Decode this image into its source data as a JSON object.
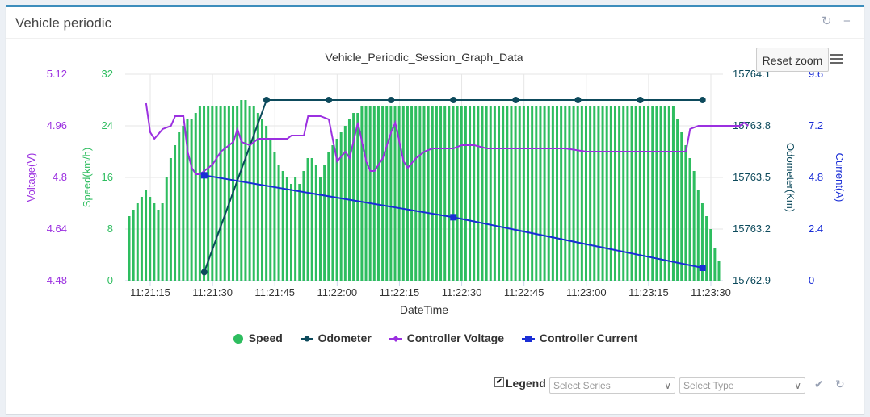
{
  "panel": {
    "title": "Vehicle periodic",
    "refresh_icon": "refresh-icon",
    "minimize_icon": "minimize-icon"
  },
  "toolbar": {
    "reset_zoom_label": "Reset zoom",
    "menu_icon": "hamburger-menu-icon"
  },
  "footer": {
    "legend_checkbox_label": "Legend",
    "legend_checked": true,
    "select_series_placeholder": "Select Series",
    "select_type_placeholder": "Select Type",
    "apply_icon": "check-icon",
    "refresh_icon": "refresh-icon"
  },
  "chart_data": {
    "type": "combo",
    "title": "Vehicle_Periodic_Session_Graph_Data",
    "xlabel": "DateTime",
    "x_ticks": [
      "11:21:15",
      "11:21:30",
      "11:21:45",
      "11:22:00",
      "11:22:15",
      "11:22:30",
      "11:22:45",
      "11:23:00",
      "11:23:15",
      "11:23:30"
    ],
    "colors": {
      "speed": "#2ebd5f",
      "odometer": "#0d4a5c",
      "voltage": "#9b30e0",
      "current": "#1a2ed6"
    },
    "axes": {
      "voltage": {
        "label": "Voltage(V)",
        "min": 4.48,
        "max": 5.12,
        "ticks": [
          "4.48",
          "4.64",
          "4.8",
          "4.96",
          "5.12"
        ],
        "side": "left"
      },
      "speed": {
        "label": "Speed(km/h)",
        "min": 0,
        "max": 32,
        "ticks": [
          "0",
          "8",
          "16",
          "24",
          "32"
        ],
        "side": "left"
      },
      "odometer": {
        "label": "Odometer(Km)",
        "min": 15762.9,
        "max": 15764.1,
        "ticks": [
          "15762.9",
          "15763.2",
          "15763.5",
          "15763.8",
          "15764.1"
        ],
        "side": "right"
      },
      "current": {
        "label": "Current(A)",
        "min": 0,
        "max": 9.6,
        "ticks": [
          "0",
          "2.4",
          "4.8",
          "7.2",
          "9.6"
        ],
        "side": "right"
      }
    },
    "time_start": "11:21:15",
    "time_end": "11:23:30",
    "series": [
      {
        "name": "Speed",
        "type": "bar",
        "axis": "speed",
        "values": [
          10,
          11,
          12,
          13,
          14,
          13,
          12,
          11,
          12,
          16,
          19,
          21,
          23,
          24,
          25,
          25,
          26,
          27,
          27,
          27,
          27,
          27,
          27,
          27,
          27,
          27,
          27,
          28,
          28,
          27,
          27,
          26,
          25,
          24,
          22,
          20,
          18,
          17,
          16,
          15,
          16,
          15,
          17,
          19,
          19,
          18,
          16,
          18,
          20,
          21,
          22,
          23,
          24,
          25,
          26,
          26,
          27,
          27,
          27,
          27,
          27,
          27,
          27,
          27,
          27,
          27,
          27,
          27,
          27,
          27,
          27,
          27,
          27,
          27,
          27,
          27,
          27,
          27,
          27,
          27,
          27,
          27,
          27,
          27,
          27,
          27,
          27,
          27,
          27,
          27,
          27,
          27,
          27,
          27,
          27,
          27,
          27,
          27,
          27,
          27,
          27,
          27,
          27,
          27,
          27,
          27,
          27,
          27,
          27,
          27,
          27,
          27,
          27,
          27,
          27,
          27,
          27,
          27,
          27,
          27,
          27,
          27,
          27,
          27,
          27,
          27,
          27,
          27,
          27,
          27,
          27,
          27,
          25,
          23,
          21,
          19,
          17,
          14,
          12,
          10,
          8,
          5,
          3
        ]
      },
      {
        "name": "Odometer",
        "type": "line",
        "axis": "odometer",
        "points": [
          [
            "11:21:28",
            15762.95
          ],
          [
            "11:21:43",
            15763.95
          ],
          [
            "11:21:58",
            15763.95
          ],
          [
            "11:22:13",
            15763.95
          ],
          [
            "11:22:28",
            15763.95
          ],
          [
            "11:22:43",
            15763.95
          ],
          [
            "11:22:58",
            15763.95
          ],
          [
            "11:23:13",
            15763.95
          ],
          [
            "11:23:28",
            15763.95
          ]
        ]
      },
      {
        "name": "Controller Voltage",
        "type": "line",
        "axis": "voltage",
        "points": [
          [
            "11:21:14",
            5.03
          ],
          [
            "11:21:15",
            4.94
          ],
          [
            "11:21:16",
            4.92
          ],
          [
            "11:21:18",
            4.95
          ],
          [
            "11:21:20",
            4.96
          ],
          [
            "11:21:21",
            4.99
          ],
          [
            "11:21:23",
            4.99
          ],
          [
            "11:21:24",
            4.88
          ],
          [
            "11:21:25",
            4.83
          ],
          [
            "11:21:26",
            4.81
          ],
          [
            "11:21:27",
            4.81
          ],
          [
            "11:21:28",
            4.82
          ],
          [
            "11:21:30",
            4.84
          ],
          [
            "11:21:32",
            4.88
          ],
          [
            "11:21:33",
            4.89
          ],
          [
            "11:21:34",
            4.9
          ],
          [
            "11:21:35",
            4.91
          ],
          [
            "11:21:36",
            4.95
          ],
          [
            "11:21:37",
            4.91
          ],
          [
            "11:21:39",
            4.9
          ],
          [
            "11:21:41",
            4.92
          ],
          [
            "11:21:44",
            4.92
          ],
          [
            "11:21:48",
            4.92
          ],
          [
            "11:21:49",
            4.93
          ],
          [
            "11:21:52",
            4.93
          ],
          [
            "11:21:53",
            4.99
          ],
          [
            "11:21:55",
            4.99
          ],
          [
            "11:21:56",
            4.99
          ],
          [
            "11:21:58",
            4.98
          ],
          [
            "11:22:00",
            4.85
          ],
          [
            "11:22:02",
            4.88
          ],
          [
            "11:22:03",
            4.86
          ],
          [
            "11:22:05",
            4.97
          ],
          [
            "11:22:07",
            4.85
          ],
          [
            "11:22:08",
            4.82
          ],
          [
            "11:22:09",
            4.82
          ],
          [
            "11:22:11",
            4.86
          ],
          [
            "11:22:13",
            4.94
          ],
          [
            "11:22:14",
            4.97
          ],
          [
            "11:22:15",
            4.91
          ],
          [
            "11:22:16",
            4.85
          ],
          [
            "11:22:17",
            4.83
          ],
          [
            "11:22:19",
            4.86
          ],
          [
            "11:22:21",
            4.88
          ],
          [
            "11:22:23",
            4.89
          ],
          [
            "11:22:25",
            4.89
          ],
          [
            "11:22:28",
            4.89
          ],
          [
            "11:22:30",
            4.9
          ],
          [
            "11:22:33",
            4.9
          ],
          [
            "11:22:36",
            4.89
          ],
          [
            "11:22:40",
            4.89
          ],
          [
            "11:22:45",
            4.89
          ],
          [
            "11:22:50",
            4.89
          ],
          [
            "11:22:55",
            4.89
          ],
          [
            "11:23:00",
            4.88
          ],
          [
            "11:23:05",
            4.88
          ],
          [
            "11:23:10",
            4.88
          ],
          [
            "11:23:15",
            4.88
          ],
          [
            "11:23:20",
            4.88
          ],
          [
            "11:23:23",
            4.88
          ],
          [
            "11:23:24",
            4.88
          ],
          [
            "11:23:25",
            4.95
          ],
          [
            "11:23:27",
            4.96
          ],
          [
            "11:23:29",
            4.96
          ],
          [
            "11:23:30",
            4.96
          ],
          [
            "11:23:32",
            4.96
          ],
          [
            "11:23:33",
            4.96
          ],
          [
            "11:23:35",
            4.96
          ],
          [
            "11:23:37",
            4.96
          ],
          [
            "11:23:38",
            4.97
          ],
          [
            "11:23:39",
            4.96
          ]
        ]
      },
      {
        "name": "Controller Current",
        "type": "line",
        "axis": "current",
        "points": [
          [
            "11:21:28",
            4.9
          ],
          [
            "11:22:28",
            2.95
          ],
          [
            "11:23:28",
            0.6
          ]
        ]
      }
    ],
    "legend": [
      "Speed",
      "Odometer",
      "Controller Voltage",
      "Controller Current"
    ],
    "grid": true,
    "legend_position": "bottom-center"
  }
}
